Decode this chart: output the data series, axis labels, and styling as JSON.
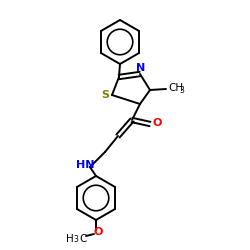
{
  "bg_color": "#ffffff",
  "bond_color": "#000000",
  "N_color": "#0000ff",
  "O_color": "#ff0000",
  "S_color": "#808000",
  "figsize": [
    2.5,
    2.5
  ],
  "dpi": 100,
  "xlim": [
    0,
    250
  ],
  "ylim": [
    0,
    250
  ],
  "lw": 1.4,
  "fs": 8.0,
  "fs_small": 6.5
}
